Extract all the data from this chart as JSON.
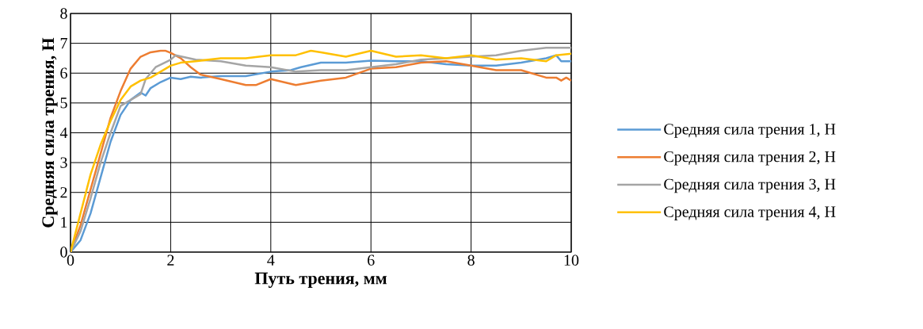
{
  "chart_data": {
    "type": "line",
    "xlabel": "Путь трения, мм",
    "ylabel": "Средняя сила трения, Н",
    "xlim": [
      0,
      10
    ],
    "xticks": [
      0,
      2,
      4,
      6,
      8,
      10
    ],
    "ylim": [
      0,
      8
    ],
    "yticks": [
      0,
      1,
      2,
      3,
      4,
      5,
      6,
      7,
      8
    ],
    "grid": true,
    "legend": "right",
    "marker": "none",
    "line_style": "solid",
    "series": [
      {
        "name": "Средняя сила трения 1, Н",
        "color": "#5b9bd5",
        "x": [
          0,
          0.2,
          0.4,
          0.6,
          0.8,
          1.0,
          1.2,
          1.4,
          1.5,
          1.6,
          1.8,
          2.0,
          2.2,
          2.4,
          2.6,
          3.0,
          3.5,
          4.0,
          4.4,
          4.6,
          5.0,
          5.5,
          6.0,
          6.5,
          7.0,
          7.5,
          8.0,
          8.5,
          9.0,
          9.5,
          9.7,
          9.8,
          10
        ],
        "values": [
          0,
          0.4,
          1.3,
          2.5,
          3.7,
          4.6,
          5.1,
          5.35,
          5.25,
          5.5,
          5.7,
          5.85,
          5.8,
          5.88,
          5.85,
          5.9,
          5.9,
          6.05,
          6.1,
          6.2,
          6.35,
          6.35,
          6.42,
          6.4,
          6.4,
          6.3,
          6.25,
          6.25,
          6.35,
          6.5,
          6.6,
          6.4,
          6.4
        ]
      },
      {
        "name": "Средняя сила трения 2, Н",
        "color": "#ed7d31",
        "x": [
          0,
          0.2,
          0.4,
          0.6,
          0.8,
          1.0,
          1.2,
          1.4,
          1.6,
          1.8,
          1.9,
          2.0,
          2.2,
          2.4,
          2.6,
          3.0,
          3.5,
          3.7,
          4.0,
          4.5,
          5.0,
          5.5,
          6.0,
          6.5,
          7.0,
          7.5,
          8.0,
          8.5,
          9.0,
          9.5,
          9.7,
          9.8,
          9.9,
          10
        ],
        "values": [
          0,
          0.9,
          2.1,
          3.3,
          4.5,
          5.4,
          6.15,
          6.55,
          6.7,
          6.75,
          6.75,
          6.68,
          6.5,
          6.2,
          5.95,
          5.8,
          5.6,
          5.6,
          5.8,
          5.6,
          5.75,
          5.85,
          6.15,
          6.2,
          6.35,
          6.4,
          6.25,
          6.1,
          6.1,
          5.85,
          5.85,
          5.75,
          5.85,
          5.75
        ]
      },
      {
        "name": "Средняя сила трения 3, Н",
        "color": "#a5a5a5",
        "x": [
          0,
          0.2,
          0.4,
          0.6,
          0.8,
          1.0,
          1.2,
          1.4,
          1.5,
          1.7,
          2.0,
          2.1,
          2.5,
          3.0,
          3.5,
          4.0,
          4.5,
          5.0,
          5.5,
          6.0,
          6.5,
          7.0,
          7.5,
          8.0,
          8.5,
          9.0,
          9.5,
          10
        ],
        "values": [
          0,
          0.7,
          1.8,
          3.0,
          4.0,
          4.9,
          5.1,
          5.3,
          5.8,
          6.2,
          6.45,
          6.6,
          6.45,
          6.4,
          6.25,
          6.2,
          6.05,
          6.1,
          6.1,
          6.2,
          6.3,
          6.45,
          6.5,
          6.55,
          6.6,
          6.75,
          6.85,
          6.85
        ]
      },
      {
        "name": "Средняя сила трения 4, Н",
        "color": "#ffc000",
        "x": [
          0,
          0.2,
          0.4,
          0.6,
          0.8,
          1.0,
          1.2,
          1.4,
          1.6,
          1.8,
          2.0,
          2.2,
          2.5,
          3.0,
          3.5,
          4.0,
          4.5,
          4.8,
          5.0,
          5.5,
          6.0,
          6.5,
          7.0,
          7.5,
          8.0,
          8.5,
          9.0,
          9.5,
          9.7,
          10
        ],
        "values": [
          0,
          1.3,
          2.6,
          3.6,
          4.4,
          5.1,
          5.55,
          5.75,
          5.85,
          6.05,
          6.25,
          6.35,
          6.4,
          6.5,
          6.5,
          6.6,
          6.6,
          6.75,
          6.7,
          6.55,
          6.75,
          6.55,
          6.6,
          6.5,
          6.6,
          6.45,
          6.5,
          6.4,
          6.6,
          6.65
        ]
      }
    ]
  }
}
